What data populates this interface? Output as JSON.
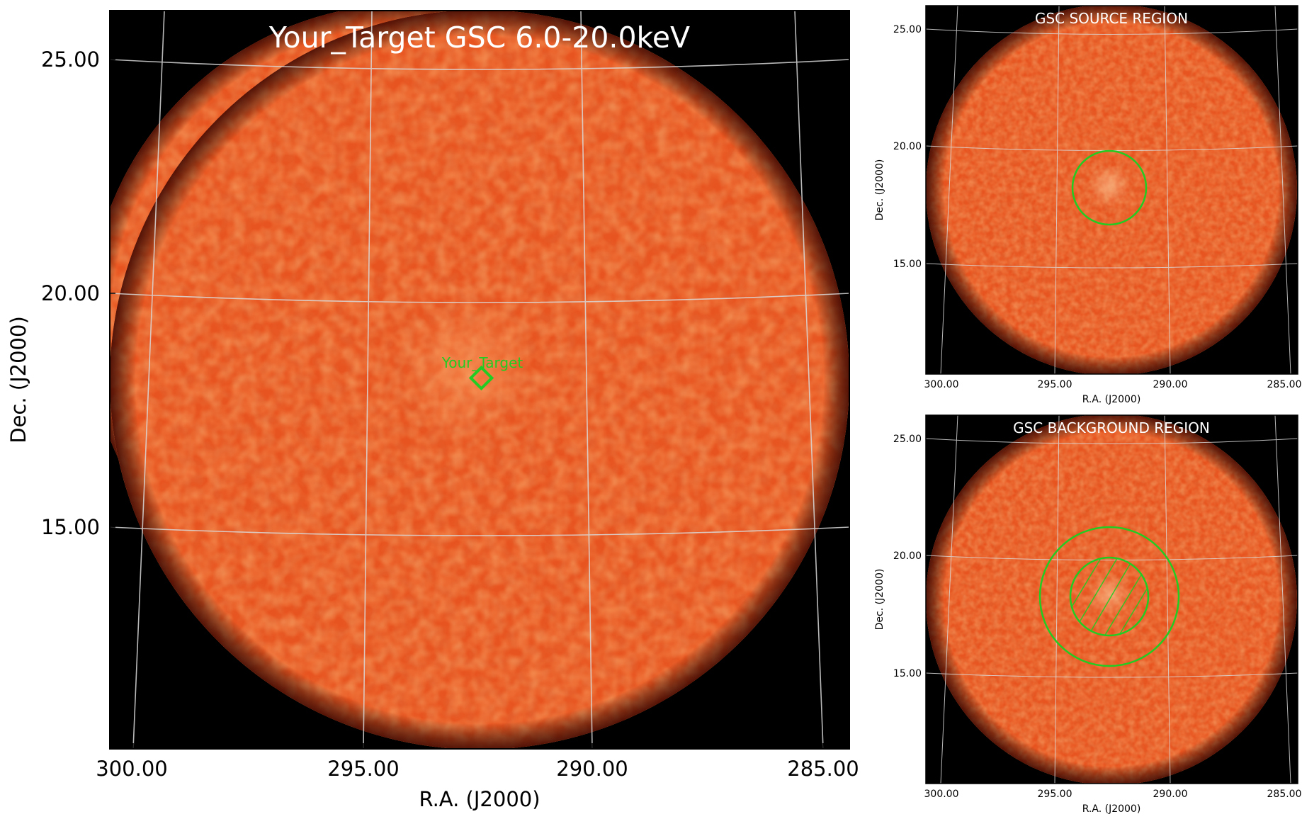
{
  "colors": {
    "map_base": "#e8541f",
    "map_bright": "#ff8a3a",
    "map_dark": "#c23410",
    "sky_background": "#000000",
    "grid": "#d9d9d9",
    "region": "#22cc22",
    "title_text": "#ffffff"
  },
  "main_panel": {
    "title": "Your_Target GSC 6.0-20.0keV",
    "xlabel": "R.A. (J2000)",
    "ylabel": "Dec. (J2000)",
    "x_ticks": [
      "300.00",
      "295.00",
      "290.00",
      "285.00"
    ],
    "y_ticks": [
      "25.00",
      "20.00",
      "15.00"
    ],
    "target_label": "Your_Target",
    "target_marker": "diamond-icon"
  },
  "source_panel": {
    "title": "GSC SOURCE REGION",
    "xlabel": "R.A. (J2000)",
    "ylabel": "Dec. (J2000)",
    "x_ticks": [
      "300.00",
      "295.00",
      "290.00",
      "285.00"
    ],
    "y_ticks": [
      "25.00",
      "20.00",
      "15.00"
    ],
    "region_shape": "circle-icon"
  },
  "background_panel": {
    "title": "GSC BACKGROUND REGION",
    "xlabel": "R.A. (J2000)",
    "ylabel": "Dec. (J2000)",
    "x_ticks": [
      "300.00",
      "295.00",
      "290.00",
      "285.00"
    ],
    "y_ticks": [
      "25.00",
      "20.00",
      "15.00"
    ],
    "region_shape": "annulus-icon",
    "excluded_shape": "hatched-circle-icon"
  }
}
